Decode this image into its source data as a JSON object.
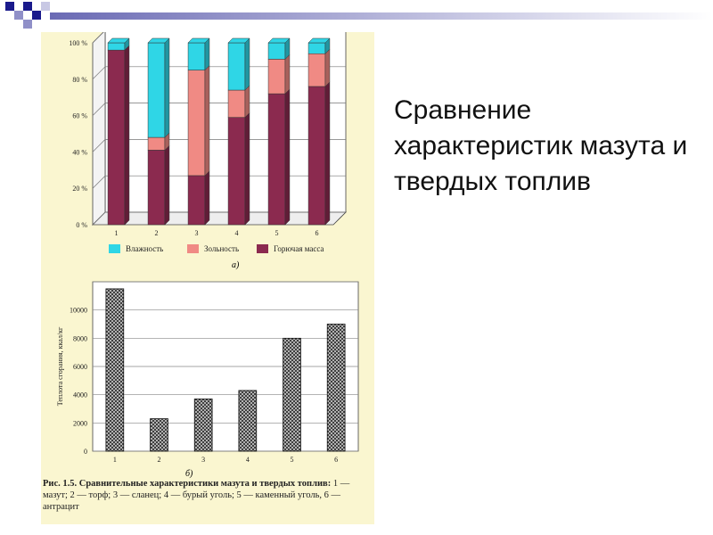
{
  "slide": {
    "title": "Сравнение характеристик мазута и твердых топлив"
  },
  "figure": {
    "subplot_a_label": "а)",
    "subplot_b_label": "б)",
    "caption_lead": "Рис. 1.5. Сравнительные характеристики мазута и твердых топлив:",
    "caption_body": "1 — мазут; 2 — торф; 3 — сланец; 4 — бурый уголь; 5 — каменный уголь, 6 — антрацит"
  },
  "colors": {
    "moisture": "#2fd6e6",
    "ash": "#f08a84",
    "combustible": "#8b2a4f",
    "panel": "#faf6d0",
    "deco_blue": "#1a1a8c"
  },
  "chart_data": [
    {
      "type": "bar",
      "stacked": true,
      "categories": [
        "1",
        "2",
        "3",
        "4",
        "5",
        "6"
      ],
      "series": [
        {
          "name": "Горючая масса",
          "values": [
            96,
            41,
            27,
            59,
            72,
            76
          ]
        },
        {
          "name": "Зольность",
          "values": [
            0,
            7,
            58,
            15,
            19,
            18
          ]
        },
        {
          "name": "Влажность",
          "values": [
            4,
            52,
            15,
            26,
            9,
            6
          ]
        }
      ],
      "yticks": [
        "0 %",
        "20 %",
        "40 %",
        "60 %",
        "80 %",
        "100 %"
      ],
      "ylim": [
        0,
        100
      ],
      "grid": true,
      "legend": "bottom"
    },
    {
      "type": "bar",
      "categories": [
        "1",
        "2",
        "3",
        "4",
        "5",
        "6"
      ],
      "values": [
        11500,
        2300,
        3700,
        4300,
        8000,
        9000
      ],
      "ylabel": "Теплота сгорания, ккал/кг",
      "yticks": [
        "0",
        "2000",
        "4000",
        "6000",
        "8000",
        "10000"
      ],
      "ylim": [
        0,
        12000
      ],
      "grid": true
    }
  ]
}
